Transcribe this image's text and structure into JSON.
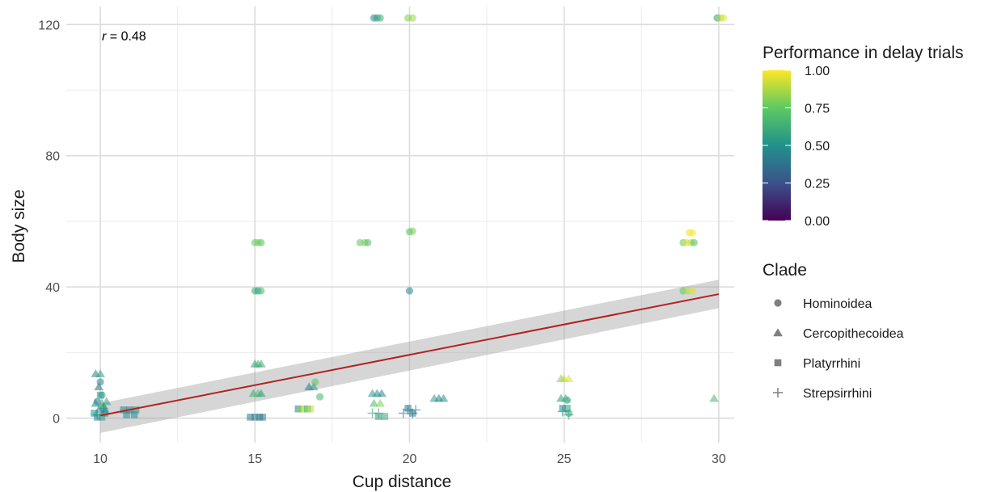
{
  "chart_data": {
    "type": "scatter",
    "title": "",
    "xlabel": "Cup distance",
    "ylabel": "Body size",
    "xlim": [
      8.9,
      30.5
    ],
    "ylim": [
      -7.5,
      125.5
    ],
    "x_ticks": [
      10,
      15,
      20,
      25,
      30
    ],
    "x_tick_labels": [
      "10",
      "15",
      "20",
      "25",
      "30"
    ],
    "y_ticks": [
      0,
      40,
      80,
      120
    ],
    "y_tick_labels": [
      "0",
      "40",
      "80",
      "120"
    ],
    "grid": true,
    "annotation": {
      "italic": "r",
      "rest": " = 0.48"
    },
    "trend_line": {
      "x": [
        10,
        30
      ],
      "y": [
        0.8,
        37.8
      ],
      "ci_low": [
        -4.5,
        33.5
      ],
      "ci_high": [
        4.5,
        42.2
      ],
      "color": "#b22222"
    },
    "color_legend": {
      "title": "Performance in delay trials",
      "labels": [
        "1.00",
        "0.75",
        "0.50",
        "0.25",
        "0.00"
      ],
      "values": [
        1.0,
        0.75,
        0.5,
        0.25,
        0.0
      ],
      "palette": [
        "#440154",
        "#3b528b",
        "#21918c",
        "#5ec962",
        "#fde725"
      ]
    },
    "shape_legend": {
      "title": "Clade",
      "items": [
        {
          "shape": "circle",
          "label": "Hominoidea"
        },
        {
          "shape": "triangle",
          "label": "Cercopithecoidea"
        },
        {
          "shape": "square",
          "label": "Platyrrhini"
        },
        {
          "shape": "plus",
          "label": "Strepsirrhini"
        }
      ]
    },
    "points": [
      {
        "x": 18.85,
        "y": 122,
        "shape": "circle",
        "perf": 0.45
      },
      {
        "x": 18.95,
        "y": 122,
        "shape": "circle",
        "perf": 0.55
      },
      {
        "x": 19.05,
        "y": 122,
        "shape": "circle",
        "perf": 0.62
      },
      {
        "x": 19.95,
        "y": 122,
        "shape": "circle",
        "perf": 0.8
      },
      {
        "x": 20.1,
        "y": 122,
        "shape": "circle",
        "perf": 0.85
      },
      {
        "x": 29.95,
        "y": 122,
        "shape": "circle",
        "perf": 0.55
      },
      {
        "x": 30.05,
        "y": 122,
        "shape": "circle",
        "perf": 0.9
      },
      {
        "x": 30.15,
        "y": 122,
        "shape": "circle",
        "perf": 0.95
      },
      {
        "x": 15.0,
        "y": 53.5,
        "shape": "circle",
        "perf": 0.75
      },
      {
        "x": 15.1,
        "y": 53.5,
        "shape": "circle",
        "perf": 0.8
      },
      {
        "x": 15.2,
        "y": 53.5,
        "shape": "circle",
        "perf": 0.72
      },
      {
        "x": 18.4,
        "y": 53.5,
        "shape": "circle",
        "perf": 0.75
      },
      {
        "x": 18.55,
        "y": 53.5,
        "shape": "circle",
        "perf": 0.8
      },
      {
        "x": 18.65,
        "y": 53.5,
        "shape": "circle",
        "perf": 0.7
      },
      {
        "x": 28.85,
        "y": 53.5,
        "shape": "circle",
        "perf": 0.75
      },
      {
        "x": 28.95,
        "y": 53.5,
        "shape": "circle",
        "perf": 0.95
      },
      {
        "x": 29.1,
        "y": 53.5,
        "shape": "circle",
        "perf": 0.9
      },
      {
        "x": 29.2,
        "y": 53.5,
        "shape": "circle",
        "perf": 0.7
      },
      {
        "x": 29.05,
        "y": 56.5,
        "shape": "circle",
        "perf": 0.97
      },
      {
        "x": 29.15,
        "y": 56.5,
        "shape": "circle",
        "perf": 1.0
      },
      {
        "x": 20.0,
        "y": 56.8,
        "shape": "circle",
        "perf": 0.7
      },
      {
        "x": 20.1,
        "y": 57.0,
        "shape": "circle",
        "perf": 0.8
      },
      {
        "x": 15.0,
        "y": 38.8,
        "shape": "circle",
        "perf": 0.62
      },
      {
        "x": 15.1,
        "y": 38.8,
        "shape": "circle",
        "perf": 0.55
      },
      {
        "x": 15.2,
        "y": 38.8,
        "shape": "circle",
        "perf": 0.68
      },
      {
        "x": 20.0,
        "y": 38.8,
        "shape": "circle",
        "perf": 0.45
      },
      {
        "x": 28.85,
        "y": 38.8,
        "shape": "circle",
        "perf": 0.75
      },
      {
        "x": 29.0,
        "y": 38.8,
        "shape": "circle",
        "perf": 0.9
      },
      {
        "x": 29.15,
        "y": 38.8,
        "shape": "circle",
        "perf": 0.95
      },
      {
        "x": 16.95,
        "y": 11.0,
        "shape": "circle",
        "perf": 0.75
      },
      {
        "x": 17.1,
        "y": 6.5,
        "shape": "circle",
        "perf": 0.65
      },
      {
        "x": 10.0,
        "y": 11.0,
        "shape": "circle",
        "perf": 0.45
      },
      {
        "x": 10.05,
        "y": 7.0,
        "shape": "circle",
        "perf": 0.55
      },
      {
        "x": 9.9,
        "y": 5.0,
        "shape": "circle",
        "perf": 0.4
      },
      {
        "x": 10.1,
        "y": 3.0,
        "shape": "circle",
        "perf": 0.5
      },
      {
        "x": 25.1,
        "y": 5.5,
        "shape": "circle",
        "perf": 0.55
      },
      {
        "x": 25.15,
        "y": 1.5,
        "shape": "circle",
        "perf": 0.6
      },
      {
        "x": 9.85,
        "y": 13.5,
        "shape": "triangle",
        "perf": 0.45
      },
      {
        "x": 10.0,
        "y": 13.5,
        "shape": "triangle",
        "perf": 0.55
      },
      {
        "x": 9.95,
        "y": 9.5,
        "shape": "triangle",
        "perf": 0.35
      },
      {
        "x": 9.85,
        "y": 4.5,
        "shape": "triangle",
        "perf": 0.5
      },
      {
        "x": 10.05,
        "y": 4.5,
        "shape": "triangle",
        "perf": 0.62
      },
      {
        "x": 10.2,
        "y": 5.0,
        "shape": "triangle",
        "perf": 0.55
      },
      {
        "x": 9.95,
        "y": 2.5,
        "shape": "triangle",
        "perf": 0.48
      },
      {
        "x": 10.15,
        "y": 2.5,
        "shape": "triangle",
        "perf": 0.58
      },
      {
        "x": 15.0,
        "y": 16.5,
        "shape": "triangle",
        "perf": 0.55
      },
      {
        "x": 15.1,
        "y": 16.5,
        "shape": "triangle",
        "perf": 0.65
      },
      {
        "x": 15.2,
        "y": 16.5,
        "shape": "triangle",
        "perf": 0.6
      },
      {
        "x": 14.95,
        "y": 7.5,
        "shape": "triangle",
        "perf": 0.62
      },
      {
        "x": 15.1,
        "y": 7.5,
        "shape": "triangle",
        "perf": 0.72
      },
      {
        "x": 15.2,
        "y": 7.5,
        "shape": "triangle",
        "perf": 0.55
      },
      {
        "x": 16.75,
        "y": 9.5,
        "shape": "triangle",
        "perf": 0.4
      },
      {
        "x": 16.9,
        "y": 9.5,
        "shape": "triangle",
        "perf": 0.55
      },
      {
        "x": 18.8,
        "y": 7.5,
        "shape": "triangle",
        "perf": 0.55
      },
      {
        "x": 18.95,
        "y": 7.5,
        "shape": "triangle",
        "perf": 0.5
      },
      {
        "x": 19.1,
        "y": 7.5,
        "shape": "triangle",
        "perf": 0.45
      },
      {
        "x": 18.85,
        "y": 4.5,
        "shape": "triangle",
        "perf": 0.7
      },
      {
        "x": 19.05,
        "y": 4.5,
        "shape": "triangle",
        "perf": 0.8
      },
      {
        "x": 20.8,
        "y": 6.0,
        "shape": "triangle",
        "perf": 0.55
      },
      {
        "x": 20.95,
        "y": 6.0,
        "shape": "triangle",
        "perf": 0.45
      },
      {
        "x": 21.1,
        "y": 6.0,
        "shape": "triangle",
        "perf": 0.5
      },
      {
        "x": 24.9,
        "y": 12.0,
        "shape": "triangle",
        "perf": 0.8
      },
      {
        "x": 25.0,
        "y": 12.0,
        "shape": "triangle",
        "perf": 0.9
      },
      {
        "x": 25.15,
        "y": 12.0,
        "shape": "triangle",
        "perf": 0.95
      },
      {
        "x": 24.9,
        "y": 6.0,
        "shape": "triangle",
        "perf": 0.55
      },
      {
        "x": 25.05,
        "y": 6.0,
        "shape": "triangle",
        "perf": 0.65
      },
      {
        "x": 29.85,
        "y": 6.0,
        "shape": "triangle",
        "perf": 0.65
      },
      {
        "x": 9.8,
        "y": 1.5,
        "shape": "square",
        "perf": 0.5
      },
      {
        "x": 9.9,
        "y": 0.3,
        "shape": "square",
        "perf": 0.45
      },
      {
        "x": 10.05,
        "y": 0.3,
        "shape": "square",
        "perf": 0.55
      },
      {
        "x": 10.15,
        "y": 1.5,
        "shape": "square",
        "perf": 0.48
      },
      {
        "x": 10.0,
        "y": 7.0,
        "shape": "square",
        "perf": 0.55
      },
      {
        "x": 10.75,
        "y": 2.5,
        "shape": "square",
        "perf": 0.45
      },
      {
        "x": 10.85,
        "y": 1.0,
        "shape": "square",
        "perf": 0.5
      },
      {
        "x": 10.95,
        "y": 2.5,
        "shape": "square",
        "perf": 0.42
      },
      {
        "x": 11.1,
        "y": 1.0,
        "shape": "square",
        "perf": 0.48
      },
      {
        "x": 11.15,
        "y": 2.5,
        "shape": "square",
        "perf": 0.52
      },
      {
        "x": 14.85,
        "y": 0.3,
        "shape": "square",
        "perf": 0.4
      },
      {
        "x": 15.0,
        "y": 0.3,
        "shape": "square",
        "perf": 0.45
      },
      {
        "x": 15.15,
        "y": 0.3,
        "shape": "square",
        "perf": 0.38
      },
      {
        "x": 15.25,
        "y": 0.3,
        "shape": "square",
        "perf": 0.42
      },
      {
        "x": 16.4,
        "y": 2.8,
        "shape": "square",
        "perf": 0.4
      },
      {
        "x": 16.5,
        "y": 2.8,
        "shape": "square",
        "perf": 0.8
      },
      {
        "x": 16.6,
        "y": 2.8,
        "shape": "square",
        "perf": 0.95
      },
      {
        "x": 16.7,
        "y": 2.8,
        "shape": "square",
        "perf": 0.6
      },
      {
        "x": 16.8,
        "y": 2.8,
        "shape": "square",
        "perf": 0.9
      },
      {
        "x": 19.0,
        "y": 0.5,
        "shape": "square",
        "perf": 0.55
      },
      {
        "x": 19.2,
        "y": 0.5,
        "shape": "square",
        "perf": 0.6
      },
      {
        "x": 19.95,
        "y": 3.0,
        "shape": "square",
        "perf": 0.42
      },
      {
        "x": 20.1,
        "y": 1.5,
        "shape": "square",
        "perf": 0.45
      },
      {
        "x": 24.95,
        "y": 3.0,
        "shape": "square",
        "perf": 0.5
      },
      {
        "x": 25.1,
        "y": 3.0,
        "shape": "square",
        "perf": 0.55
      },
      {
        "x": 9.9,
        "y": 1.0,
        "shape": "plus",
        "perf": 0.5
      },
      {
        "x": 10.1,
        "y": 3.0,
        "shape": "plus",
        "perf": 0.45
      },
      {
        "x": 18.8,
        "y": 1.5,
        "shape": "plus",
        "perf": 0.55
      },
      {
        "x": 19.0,
        "y": 1.5,
        "shape": "plus",
        "perf": 0.6
      },
      {
        "x": 19.8,
        "y": 1.5,
        "shape": "plus",
        "perf": 0.35
      },
      {
        "x": 19.95,
        "y": 2.5,
        "shape": "plus",
        "perf": 0.4
      },
      {
        "x": 20.1,
        "y": 1.5,
        "shape": "plus",
        "perf": 0.38
      },
      {
        "x": 20.2,
        "y": 2.5,
        "shape": "plus",
        "perf": 0.42
      },
      {
        "x": 24.95,
        "y": 2.0,
        "shape": "plus",
        "perf": 0.45
      },
      {
        "x": 25.15,
        "y": 1.0,
        "shape": "plus",
        "perf": 0.55
      }
    ]
  }
}
